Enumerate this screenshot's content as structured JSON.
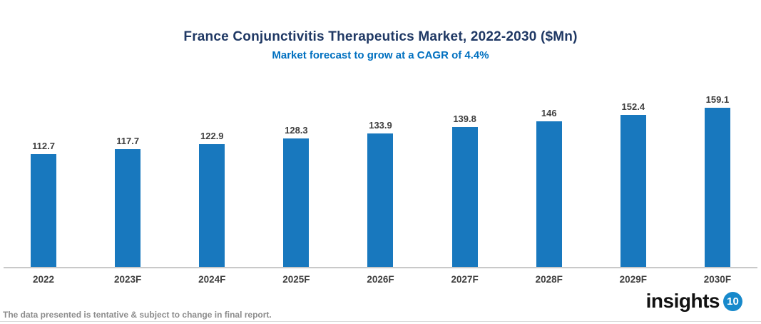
{
  "chart": {
    "title": "France Conjunctivitis Therapeutics Market, 2022-2030 ($Mn)",
    "subtitle": "Market forecast to grow at a CAGR of 4.4%"
  },
  "chart_data": {
    "type": "bar",
    "categories": [
      "2022",
      "2023F",
      "2024F",
      "2025F",
      "2026F",
      "2027F",
      "2028F",
      "2029F",
      "2030F"
    ],
    "values": [
      112.7,
      117.7,
      122.9,
      128.3,
      133.9,
      139.8,
      146,
      152.4,
      159.1
    ],
    "title": "France Conjunctivitis Therapeutics Market, 2022-2030 ($Mn)",
    "subtitle": "Market forecast to grow at a CAGR of 4.4%",
    "xlabel": "",
    "ylabel": "",
    "ylim": [
      0,
      170
    ],
    "grid": false,
    "legend": false,
    "value_labels_shown": true,
    "bar_color": "#1878BE"
  },
  "footer": {
    "disclaimer": "The data presented is tentative & subject to change in final report.",
    "logo_text": "insights",
    "logo_badge": "10"
  },
  "colors": {
    "title": "#1F3864",
    "subtitle": "#0070C0",
    "bar": "#1878BE",
    "label": "#3F3F3F",
    "axis_line": "#C9C9C9",
    "footer_text": "#8C8C8C",
    "logo_badge_bg": "#1789CB"
  }
}
